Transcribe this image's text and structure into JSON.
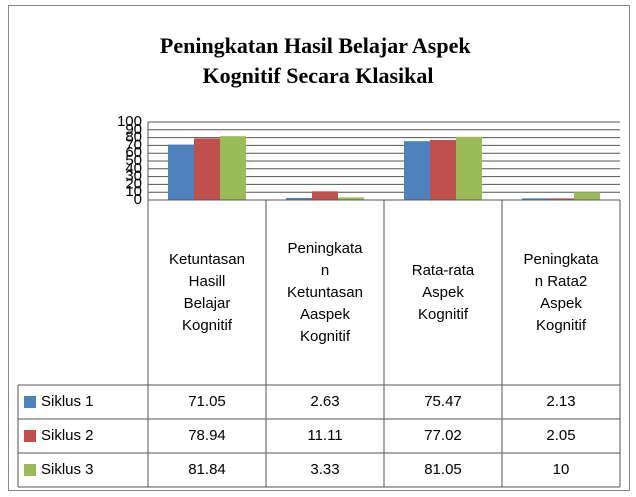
{
  "chart_data": {
    "type": "bar",
    "title": "Peningkatan Hasil  Belajar Aspek Kognitif Secara Klasikal",
    "categories": [
      "Ketuntasan Hasill Belajar Kognitif",
      "Peningkatan Ketuntasan Aaspek Kognitif",
      "Rata-rata Aspek Kognitif",
      "Peningkatan Rata2 Aspek Kognitif"
    ],
    "series": [
      {
        "name": "Siklus 1",
        "color": "#4f81bd",
        "values": [
          71.05,
          2.63,
          75.47,
          2.13
        ]
      },
      {
        "name": "Siklus 2",
        "color": "#c0504d",
        "values": [
          78.94,
          11.11,
          77.02,
          2.05
        ]
      },
      {
        "name": "Siklus 3",
        "color": "#9bbb59",
        "values": [
          81.84,
          3.33,
          81.05,
          10
        ]
      }
    ],
    "ylim": [
      0,
      100
    ],
    "yticks": [
      0,
      10,
      20,
      30,
      40,
      50,
      60,
      70,
      80,
      90,
      100
    ],
    "grid": true,
    "data_table": true
  }
}
